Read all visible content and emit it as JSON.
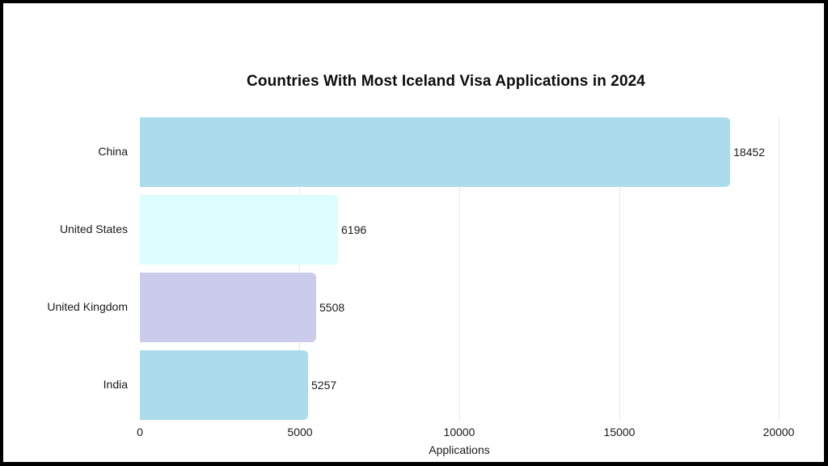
{
  "chart_data": {
    "type": "bar",
    "orientation": "horizontal",
    "title": "Countries With Most Iceland Visa Applications in 2024",
    "xlabel": "Applications",
    "ylabel": "",
    "categories": [
      "China",
      "United States",
      "United Kingdom",
      "India"
    ],
    "values": [
      18452,
      6196,
      5508,
      5257
    ],
    "bar_colors": [
      "#aadcec",
      "#dbfdfd",
      "#cbcbeb",
      "#aadcec"
    ],
    "xlim": [
      0,
      20000
    ],
    "xticks": [
      "0",
      "5000",
      "10000",
      "15000",
      "20000"
    ],
    "grid": "vertical",
    "data_labels": true,
    "legend": "none"
  },
  "frame": {
    "border_color": "#000000",
    "background": "#ffffff"
  }
}
